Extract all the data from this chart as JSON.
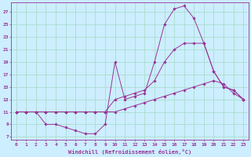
{
  "xlabel": "Windchill (Refroidissement éolien,°C)",
  "background_color": "#cceeff",
  "grid_color": "#aaddcc",
  "line_color": "#993399",
  "x_ticks": [
    0,
    1,
    2,
    3,
    4,
    5,
    6,
    7,
    8,
    9,
    10,
    11,
    12,
    13,
    14,
    15,
    16,
    17,
    18,
    19,
    20,
    21,
    22,
    23
  ],
  "y_ticks": [
    7,
    9,
    11,
    13,
    15,
    17,
    19,
    21,
    23,
    25,
    27
  ],
  "xlim": [
    -0.5,
    23.5
  ],
  "ylim": [
    6.5,
    28.5
  ],
  "series": [
    {
      "x": [
        0,
        1,
        2,
        3,
        4,
        5,
        6,
        7,
        8,
        9,
        10,
        11,
        12,
        13,
        14,
        15,
        16,
        17,
        18,
        19,
        20,
        21,
        22,
        23
      ],
      "y": [
        11,
        11,
        11,
        9,
        9,
        8.5,
        8,
        7.5,
        7.5,
        9,
        19,
        13,
        13.5,
        14,
        19,
        25,
        27.5,
        28,
        26,
        22,
        17.5,
        15,
        14.5,
        13
      ]
    },
    {
      "x": [
        0,
        1,
        2,
        3,
        4,
        5,
        6,
        7,
        8,
        9,
        10,
        11,
        12,
        13,
        14,
        15,
        16,
        17,
        18,
        19,
        20,
        21,
        22,
        23
      ],
      "y": [
        11,
        11,
        11,
        11,
        11,
        11,
        11,
        11,
        11,
        11,
        13,
        13.5,
        14,
        14.5,
        16,
        19,
        21,
        22,
        22,
        22,
        17.5,
        15,
        14.5,
        13
      ]
    },
    {
      "x": [
        0,
        1,
        2,
        3,
        4,
        5,
        6,
        7,
        8,
        9,
        10,
        11,
        12,
        13,
        14,
        15,
        16,
        17,
        18,
        19,
        20,
        21,
        22,
        23
      ],
      "y": [
        11,
        11,
        11,
        11,
        11,
        11,
        11,
        11,
        11,
        11,
        11,
        11.5,
        12,
        12.5,
        13,
        13.5,
        14,
        14.5,
        15,
        15.5,
        16,
        15.5,
        14,
        13
      ]
    }
  ]
}
